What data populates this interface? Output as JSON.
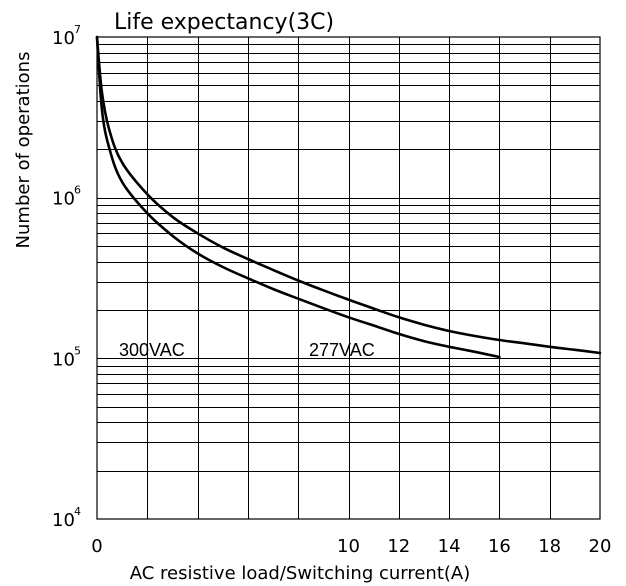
{
  "chart_data": {
    "type": "line",
    "title": "Life expectancy(3C)",
    "xlabel": "AC resistive load/Switching current(A)",
    "ylabel": "Number of operations",
    "x_scale": "linear",
    "y_scale": "log",
    "xlim": [
      0,
      20
    ],
    "ylim": [
      10000,
      10000000
    ],
    "x_tick_labels": [
      "0",
      "10",
      "12",
      "14",
      "16",
      "18",
      "20"
    ],
    "y_ticks": [
      {
        "base": "10",
        "exp": "4"
      },
      {
        "base": "10",
        "exp": "5"
      },
      {
        "base": "10",
        "exp": "6"
      },
      {
        "base": "10",
        "exp": "7"
      }
    ],
    "grid": true,
    "series": [
      {
        "name": "300VAC",
        "x": [
          0,
          0.2,
          0.5,
          1,
          2,
          3,
          4,
          5,
          6,
          7,
          8,
          9,
          10,
          11,
          12,
          13,
          14,
          15,
          16
        ],
        "y": [
          10000000,
          3500000,
          2000000,
          1250000,
          800000,
          580000,
          450000,
          370000,
          315000,
          270000,
          235000,
          205000,
          180000,
          160000,
          142000,
          128000,
          118000,
          110000,
          102000
        ],
        "label_position": "left"
      },
      {
        "name": "277VAC",
        "x": [
          0,
          0.2,
          0.5,
          1,
          2,
          3,
          4,
          5,
          6,
          7,
          8,
          9,
          10,
          11,
          12,
          13,
          14,
          15,
          16,
          17,
          18,
          19,
          20
        ],
        "y": [
          10000000,
          4500000,
          2600000,
          1650000,
          1050000,
          760000,
          600000,
          490000,
          415000,
          355000,
          305000,
          265000,
          232000,
          204000,
          180000,
          162000,
          148000,
          138000,
          130000,
          124000,
          118000,
          113000,
          108000
        ],
        "label_position": "middle"
      }
    ]
  }
}
